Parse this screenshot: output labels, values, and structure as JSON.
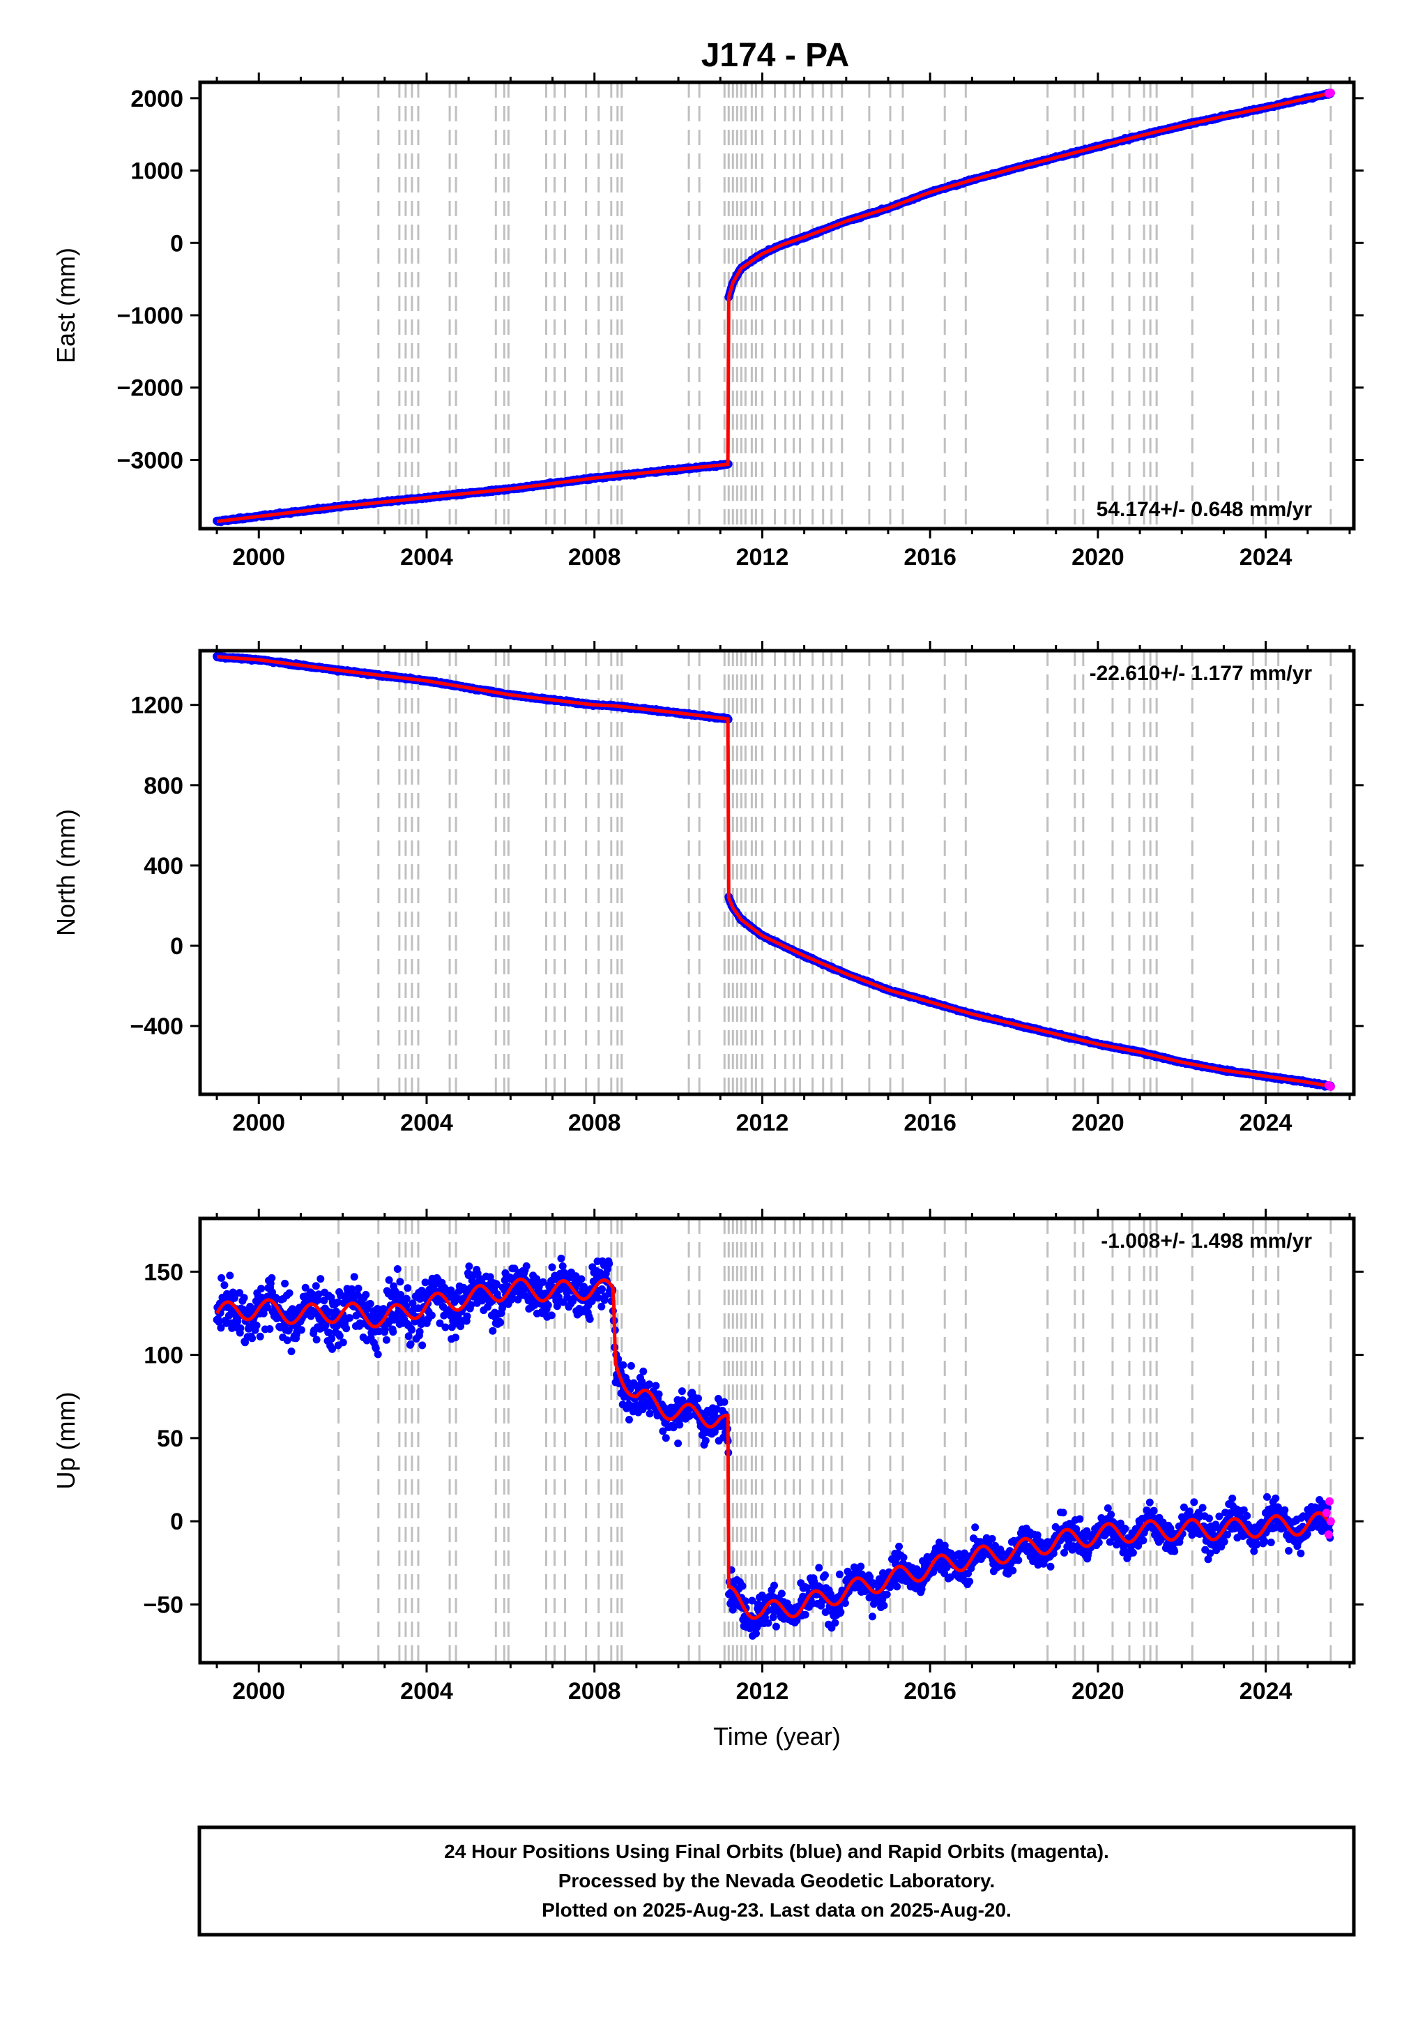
{
  "title": "J174 - PA",
  "footer": {
    "line1": "24 Hour Positions Using Final Orbits (blue) and Rapid Orbits (magenta).",
    "line2": "Processed by the Nevada Geodetic Laboratory.",
    "line3": "Plotted on 2025-Aug-23. Last data on 2025-Aug-20."
  },
  "colors": {
    "final_orbits": "#0000ff",
    "rapid_orbits": "#ff00ff",
    "model": "#ff0000",
    "event_lines": "#c0c0c0"
  },
  "chart_data": [
    {
      "type": "scatter",
      "panel": "east",
      "ylabel": "East (mm)",
      "xlabel": "",
      "xlim": [
        1998.6,
        2026.1
      ],
      "ylim": [
        -3950,
        2220
      ],
      "xticks": [
        2000,
        2004,
        2008,
        2012,
        2016,
        2020,
        2024
      ],
      "yticks": [
        -3000,
        -2000,
        -1000,
        0,
        1000,
        2000
      ],
      "rate_label": "54.174+/- 0.648 mm/yr",
      "rate_position": "bottom-right",
      "series": [
        {
          "name": "Final Orbits (blue)",
          "color": "#0000ff",
          "x": [
            1999.0,
            2000.0,
            2002.0,
            2004.0,
            2006.0,
            2008.0,
            2008.5,
            2010.0,
            2011.19,
            2011.2,
            2011.3,
            2011.5,
            2012.0,
            2012.5,
            2013.0,
            2014.0,
            2015.0,
            2016.0,
            2017.0,
            2018.0,
            2019.0,
            2020.0,
            2021.0,
            2022.0,
            2023.0,
            2024.0,
            2025.0,
            2025.55
          ],
          "y": [
            -3850,
            -3780,
            -3640,
            -3520,
            -3400,
            -3250,
            -3220,
            -3130,
            -3060,
            -750,
            -550,
            -350,
            -150,
            -20,
            80,
            300,
            480,
            700,
            870,
            1030,
            1180,
            1330,
            1480,
            1620,
            1750,
            1870,
            2000,
            2070
          ]
        },
        {
          "name": "Rapid Orbits (magenta)",
          "color": "#ff00ff",
          "x": [
            2025.5,
            2025.55
          ],
          "y": [
            2065,
            2075
          ]
        }
      ],
      "event_years": [
        2001.9,
        2002.85,
        2003.35,
        2003.5,
        2003.65,
        2003.8,
        2004.55,
        2004.7,
        2005.65,
        2005.85,
        2005.95,
        2006.85,
        2007.05,
        2007.3,
        2007.8,
        2008.1,
        2008.4,
        2008.55,
        2008.65,
        2010.25,
        2010.5,
        2011.1,
        2011.2,
        2011.3,
        2011.4,
        2011.5,
        2011.6,
        2011.75,
        2011.85,
        2012.0,
        2012.3,
        2012.55,
        2012.75,
        2012.9,
        2013.2,
        2013.45,
        2013.65,
        2013.9,
        2014.55,
        2015.05,
        2015.35,
        2016.35,
        2016.85,
        2018.8,
        2019.45,
        2019.65,
        2020.35,
        2020.75,
        2021.1,
        2021.25,
        2021.4,
        2022.25,
        2023.7,
        2024.0,
        2024.3,
        2025.55
      ]
    },
    {
      "type": "scatter",
      "panel": "north",
      "ylabel": "North (mm)",
      "xlabel": "",
      "xlim": [
        1998.6,
        2026.1
      ],
      "ylim": [
        -740,
        1470
      ],
      "xticks": [
        2000,
        2004,
        2008,
        2012,
        2016,
        2020,
        2024
      ],
      "yticks": [
        -400,
        0,
        400,
        800,
        1200
      ],
      "rate_label": "-22.610+/- 1.177 mm/yr",
      "rate_position": "top-right",
      "series": [
        {
          "name": "Final Orbits (blue)",
          "color": "#0000ff",
          "x": [
            1999.0,
            2000.0,
            2002.0,
            2004.0,
            2006.0,
            2008.0,
            2008.5,
            2010.0,
            2011.19,
            2011.2,
            2011.3,
            2011.5,
            2012.0,
            2013.0,
            2014.0,
            2015.0,
            2016.0,
            2017.0,
            2018.0,
            2019.0,
            2020.0,
            2021.0,
            2022.0,
            2023.0,
            2024.0,
            2025.0,
            2025.55
          ],
          "y": [
            1440,
            1425,
            1370,
            1320,
            1250,
            1200,
            1195,
            1160,
            1130,
            240,
            190,
            130,
            50,
            -50,
            -140,
            -220,
            -280,
            -340,
            -390,
            -440,
            -490,
            -530,
            -580,
            -620,
            -650,
            -680,
            -700
          ]
        },
        {
          "name": "Rapid Orbits (magenta)",
          "color": "#ff00ff",
          "x": [
            2025.5,
            2025.55
          ],
          "y": [
            -695,
            -702
          ]
        }
      ],
      "event_years": [
        2001.9,
        2002.85,
        2003.35,
        2003.5,
        2003.65,
        2003.8,
        2004.55,
        2004.7,
        2005.65,
        2005.85,
        2005.95,
        2006.85,
        2007.05,
        2007.3,
        2007.8,
        2008.1,
        2008.4,
        2008.55,
        2008.65,
        2010.25,
        2010.5,
        2011.1,
        2011.2,
        2011.3,
        2011.4,
        2011.5,
        2011.6,
        2011.75,
        2011.85,
        2012.0,
        2012.3,
        2012.55,
        2012.75,
        2012.9,
        2013.2,
        2013.45,
        2013.65,
        2013.9,
        2014.55,
        2015.05,
        2015.35,
        2016.35,
        2016.85,
        2018.8,
        2019.45,
        2019.65,
        2020.35,
        2020.75,
        2021.1,
        2021.25,
        2021.4,
        2022.25,
        2023.7,
        2024.0,
        2024.3,
        2025.55
      ]
    },
    {
      "type": "scatter",
      "panel": "up",
      "ylabel": "Up (mm)",
      "xlabel": "Time (year)",
      "xlim": [
        1998.6,
        2026.1
      ],
      "ylim": [
        -85,
        182
      ],
      "xticks": [
        2000,
        2004,
        2008,
        2012,
        2016,
        2020,
        2024
      ],
      "yticks": [
        -50,
        0,
        50,
        100,
        150
      ],
      "rate_label": "-1.008+/- 1.498 mm/yr",
      "rate_position": "top-right",
      "series": [
        {
          "name": "Final Orbits (blue)",
          "color": "#0000ff",
          "x": [
            1999.0,
            2000.0,
            2001.0,
            2002.0,
            2003.0,
            2004.0,
            2005.0,
            2006.0,
            2007.0,
            2008.0,
            2008.45,
            2008.5,
            2009.0,
            2010.0,
            2011.0,
            2011.19,
            2011.2,
            2012.0,
            2013.0,
            2014.0,
            2015.0,
            2016.0,
            2017.0,
            2018.0,
            2019.0,
            2020.0,
            2021.0,
            2022.0,
            2023.0,
            2024.0,
            2025.0,
            2025.55
          ],
          "y": [
            125,
            128,
            124,
            126,
            122,
            130,
            134,
            140,
            138,
            140,
            138,
            95,
            75,
            65,
            62,
            58,
            -45,
            -55,
            -50,
            -42,
            -35,
            -28,
            -22,
            -18,
            -12,
            -8,
            -6,
            -5,
            -5,
            -3,
            -2,
            0
          ],
          "scatter": [
            16,
            14,
            14,
            15,
            14,
            14,
            13,
            13,
            12,
            12,
            12,
            12,
            12,
            10,
            10,
            10,
            10,
            10,
            10,
            9,
            9,
            9,
            9,
            9,
            9,
            9,
            9,
            9,
            9,
            9,
            9,
            9
          ],
          "period": 1.0,
          "amplitude": 6
        },
        {
          "name": "Rapid Orbits (magenta)",
          "color": "#ff00ff",
          "x": [
            2025.45,
            2025.5,
            2025.52,
            2025.55
          ],
          "y": [
            5,
            -8,
            12,
            0
          ]
        }
      ],
      "event_years": [
        2001.9,
        2002.85,
        2003.35,
        2003.5,
        2003.65,
        2003.8,
        2004.55,
        2004.7,
        2005.65,
        2005.85,
        2005.95,
        2006.85,
        2007.05,
        2007.3,
        2007.8,
        2008.1,
        2008.4,
        2008.55,
        2008.65,
        2010.25,
        2010.5,
        2011.1,
        2011.2,
        2011.3,
        2011.4,
        2011.5,
        2011.6,
        2011.75,
        2011.85,
        2012.0,
        2012.3,
        2012.55,
        2012.75,
        2012.9,
        2013.2,
        2013.45,
        2013.65,
        2013.9,
        2014.55,
        2015.05,
        2015.35,
        2016.35,
        2016.85,
        2018.8,
        2019.45,
        2019.65,
        2020.35,
        2020.75,
        2021.1,
        2021.25,
        2021.4,
        2022.25,
        2023.7,
        2024.0,
        2024.3,
        2025.55
      ]
    }
  ]
}
